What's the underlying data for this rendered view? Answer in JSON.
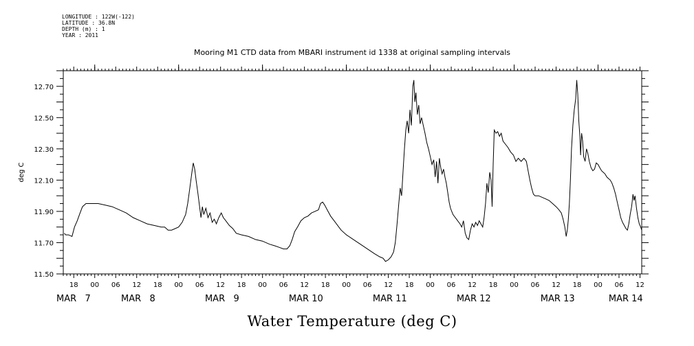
{
  "meta": {
    "longitude": "LONGITUDE : 122W(-122)",
    "latitude": "LATITUDE : 36.8N",
    "depth": "DEPTH (m) : 1",
    "year": "YEAR : 2011"
  },
  "chart_data": {
    "type": "line",
    "title": "Mooring M1 CTD data from MBARI instrument id 1338 at original sampling intervals",
    "xlabel": "Water Temperature (deg C)",
    "ylabel": "deg C",
    "ylim": [
      11.5,
      12.8
    ],
    "yticks": [
      11.5,
      11.7,
      11.9,
      12.1,
      12.3,
      12.5,
      12.7
    ],
    "ytick_labels": [
      "11.50",
      "11.70",
      "11.90",
      "12.10",
      "12.30",
      "12.50",
      "12.70"
    ],
    "xlim_hours": [
      -33,
      132.5
    ],
    "hour_ticks": [
      {
        "h": -30,
        "label": "18"
      },
      {
        "h": -24,
        "label": "00"
      },
      {
        "h": -18,
        "label": "06"
      },
      {
        "h": -12,
        "label": "12"
      },
      {
        "h": -6,
        "label": "18"
      },
      {
        "h": 0,
        "label": "00"
      },
      {
        "h": 6,
        "label": "06"
      },
      {
        "h": 12,
        "label": "12"
      },
      {
        "h": 18,
        "label": "18"
      },
      {
        "h": 24,
        "label": "00"
      },
      {
        "h": 30,
        "label": "06"
      },
      {
        "h": 36,
        "label": "12"
      },
      {
        "h": 42,
        "label": "18"
      },
      {
        "h": 48,
        "label": "00"
      },
      {
        "h": 54,
        "label": "06"
      },
      {
        "h": 60,
        "label": "12"
      },
      {
        "h": 66,
        "label": "18"
      },
      {
        "h": 72,
        "label": "00"
      },
      {
        "h": 78,
        "label": "06"
      },
      {
        "h": 84,
        "label": "12"
      },
      {
        "h": 90,
        "label": "18"
      },
      {
        "h": 96,
        "label": "00"
      },
      {
        "h": 102,
        "label": "06"
      },
      {
        "h": 108,
        "label": "12"
      },
      {
        "h": 114,
        "label": "18"
      },
      {
        "h": 120,
        "label": "00"
      },
      {
        "h": 126,
        "label": "06"
      },
      {
        "h": 132,
        "label": "12"
      }
    ],
    "date_labels": [
      {
        "h": -33,
        "label": "MAR   7"
      },
      {
        "h": -14.5,
        "label": "MAR   8"
      },
      {
        "h": 9.5,
        "label": "MAR   9"
      },
      {
        "h": 33.5,
        "label": "MAR 10"
      },
      {
        "h": 57.5,
        "label": "MAR 11"
      },
      {
        "h": 81.5,
        "label": "MAR 12"
      },
      {
        "h": 105.5,
        "label": "MAR 13"
      },
      {
        "h": 125,
        "label": "MAR 14"
      }
    ],
    "series": [
      {
        "values": [
          [
            -32.7,
            11.76
          ],
          [
            -32.3,
            11.75
          ],
          [
            -31.5,
            11.75
          ],
          [
            -30.5,
            11.74
          ],
          [
            -29.8,
            11.8
          ],
          [
            -29.0,
            11.84
          ],
          [
            -28.2,
            11.89
          ],
          [
            -27.5,
            11.93
          ],
          [
            -26.5,
            11.95
          ],
          [
            -25.0,
            11.95
          ],
          [
            -23.0,
            11.95
          ],
          [
            -21.0,
            11.94
          ],
          [
            -19.0,
            11.93
          ],
          [
            -17.0,
            11.91
          ],
          [
            -15.0,
            11.89
          ],
          [
            -13.0,
            11.86
          ],
          [
            -11.0,
            11.84
          ],
          [
            -9.0,
            11.82
          ],
          [
            -7.0,
            11.81
          ],
          [
            -5.0,
            11.8
          ],
          [
            -4.0,
            11.8
          ],
          [
            -3.0,
            11.78
          ],
          [
            -2.0,
            11.78
          ],
          [
            -1.0,
            11.79
          ],
          [
            0.0,
            11.8
          ],
          [
            1.0,
            11.83
          ],
          [
            2.0,
            11.88
          ],
          [
            2.6,
            11.95
          ],
          [
            3.2,
            12.05
          ],
          [
            3.8,
            12.15
          ],
          [
            4.2,
            12.21
          ],
          [
            4.6,
            12.17
          ],
          [
            5.0,
            12.1
          ],
          [
            5.5,
            12.02
          ],
          [
            6.0,
            11.93
          ],
          [
            6.4,
            11.86
          ],
          [
            6.8,
            11.93
          ],
          [
            7.2,
            11.88
          ],
          [
            7.8,
            11.92
          ],
          [
            8.4,
            11.86
          ],
          [
            9.0,
            11.89
          ],
          [
            9.6,
            11.83
          ],
          [
            10.2,
            11.85
          ],
          [
            10.8,
            11.82
          ],
          [
            11.5,
            11.86
          ],
          [
            12.2,
            11.89
          ],
          [
            12.8,
            11.86
          ],
          [
            13.5,
            11.84
          ],
          [
            14.5,
            11.81
          ],
          [
            15.5,
            11.79
          ],
          [
            16.5,
            11.76
          ],
          [
            18.0,
            11.75
          ],
          [
            20.0,
            11.74
          ],
          [
            22.0,
            11.72
          ],
          [
            24.0,
            11.71
          ],
          [
            26.0,
            11.69
          ],
          [
            27.5,
            11.68
          ],
          [
            28.8,
            11.67
          ],
          [
            30.0,
            11.66
          ],
          [
            31.0,
            11.66
          ],
          [
            31.8,
            11.68
          ],
          [
            32.5,
            11.72
          ],
          [
            33.2,
            11.77
          ],
          [
            34.0,
            11.8
          ],
          [
            35.0,
            11.84
          ],
          [
            36.0,
            11.86
          ],
          [
            37.0,
            11.87
          ],
          [
            38.0,
            11.89
          ],
          [
            39.0,
            11.9
          ],
          [
            40.0,
            11.91
          ],
          [
            40.6,
            11.95
          ],
          [
            41.2,
            11.96
          ],
          [
            41.8,
            11.94
          ],
          [
            42.5,
            11.91
          ],
          [
            43.5,
            11.87
          ],
          [
            44.5,
            11.84
          ],
          [
            45.5,
            11.81
          ],
          [
            46.5,
            11.78
          ],
          [
            48.0,
            11.75
          ],
          [
            50.0,
            11.72
          ],
          [
            52.0,
            11.69
          ],
          [
            54.0,
            11.66
          ],
          [
            56.0,
            11.63
          ],
          [
            57.5,
            11.61
          ],
          [
            58.5,
            11.6
          ],
          [
            59.2,
            11.58
          ],
          [
            60.0,
            11.59
          ],
          [
            60.8,
            11.61
          ],
          [
            61.5,
            11.64
          ],
          [
            62.0,
            11.7
          ],
          [
            62.5,
            11.82
          ],
          [
            63.0,
            11.95
          ],
          [
            63.4,
            12.05
          ],
          [
            63.8,
            12.0
          ],
          [
            64.2,
            12.15
          ],
          [
            64.6,
            12.3
          ],
          [
            65.0,
            12.42
          ],
          [
            65.4,
            12.48
          ],
          [
            65.8,
            12.4
          ],
          [
            66.2,
            12.55
          ],
          [
            66.6,
            12.45
          ],
          [
            67.0,
            12.7
          ],
          [
            67.3,
            12.74
          ],
          [
            67.6,
            12.6
          ],
          [
            67.9,
            12.66
          ],
          [
            68.3,
            12.52
          ],
          [
            68.7,
            12.58
          ],
          [
            69.1,
            12.46
          ],
          [
            69.5,
            12.5
          ],
          [
            70.0,
            12.45
          ],
          [
            70.5,
            12.4
          ],
          [
            71.0,
            12.34
          ],
          [
            71.5,
            12.3
          ],
          [
            72.0,
            12.25
          ],
          [
            72.5,
            12.2
          ],
          [
            73.0,
            12.23
          ],
          [
            73.4,
            12.12
          ],
          [
            73.8,
            12.22
          ],
          [
            74.2,
            12.08
          ],
          [
            74.6,
            12.24
          ],
          [
            75.0,
            12.18
          ],
          [
            75.4,
            12.14
          ],
          [
            75.8,
            12.17
          ],
          [
            76.2,
            12.12
          ],
          [
            76.6,
            12.08
          ],
          [
            77.0,
            12.02
          ],
          [
            77.4,
            11.96
          ],
          [
            77.8,
            11.92
          ],
          [
            78.5,
            11.88
          ],
          [
            79.5,
            11.85
          ],
          [
            80.5,
            11.82
          ],
          [
            81.0,
            11.8
          ],
          [
            81.5,
            11.84
          ],
          [
            82.0,
            11.76
          ],
          [
            82.5,
            11.73
          ],
          [
            83.0,
            11.72
          ],
          [
            83.5,
            11.78
          ],
          [
            84.0,
            11.82
          ],
          [
            84.5,
            11.8
          ],
          [
            85.0,
            11.83
          ],
          [
            85.5,
            11.81
          ],
          [
            86.0,
            11.84
          ],
          [
            86.5,
            11.82
          ],
          [
            87.0,
            11.8
          ],
          [
            87.4,
            11.86
          ],
          [
            87.8,
            11.95
          ],
          [
            88.2,
            12.08
          ],
          [
            88.6,
            12.02
          ],
          [
            89.0,
            12.15
          ],
          [
            89.4,
            12.1
          ],
          [
            89.7,
            11.93
          ],
          [
            90.0,
            12.2
          ],
          [
            90.3,
            12.42
          ],
          [
            90.8,
            12.4
          ],
          [
            91.3,
            12.41
          ],
          [
            91.8,
            12.38
          ],
          [
            92.3,
            12.4
          ],
          [
            92.8,
            12.35
          ],
          [
            93.5,
            12.33
          ],
          [
            94.2,
            12.31
          ],
          [
            95.0,
            12.28
          ],
          [
            95.8,
            12.26
          ],
          [
            96.5,
            12.22
          ],
          [
            97.2,
            12.24
          ],
          [
            98.0,
            12.22
          ],
          [
            98.8,
            12.24
          ],
          [
            99.5,
            12.22
          ],
          [
            100.0,
            12.16
          ],
          [
            100.5,
            12.1
          ],
          [
            101.0,
            12.05
          ],
          [
            101.5,
            12.01
          ],
          [
            102.0,
            12.0
          ],
          [
            103.0,
            12.0
          ],
          [
            104.0,
            11.99
          ],
          [
            105.0,
            11.98
          ],
          [
            106.0,
            11.97
          ],
          [
            107.0,
            11.95
          ],
          [
            108.0,
            11.93
          ],
          [
            108.8,
            11.91
          ],
          [
            109.5,
            11.89
          ],
          [
            110.0,
            11.85
          ],
          [
            110.5,
            11.8
          ],
          [
            110.9,
            11.74
          ],
          [
            111.2,
            11.78
          ],
          [
            111.5,
            11.85
          ],
          [
            111.8,
            11.95
          ],
          [
            112.1,
            12.1
          ],
          [
            112.4,
            12.3
          ],
          [
            112.8,
            12.45
          ],
          [
            113.2,
            12.55
          ],
          [
            113.6,
            12.62
          ],
          [
            113.9,
            12.74
          ],
          [
            114.2,
            12.65
          ],
          [
            114.5,
            12.48
          ],
          [
            114.8,
            12.38
          ],
          [
            115.0,
            12.26
          ],
          [
            115.3,
            12.4
          ],
          [
            115.6,
            12.35
          ],
          [
            115.9,
            12.25
          ],
          [
            116.3,
            12.22
          ],
          [
            116.7,
            12.3
          ],
          [
            117.1,
            12.27
          ],
          [
            117.5,
            12.22
          ],
          [
            118.0,
            12.18
          ],
          [
            118.5,
            12.16
          ],
          [
            119.0,
            12.17
          ],
          [
            119.5,
            12.21
          ],
          [
            120.0,
            12.2
          ],
          [
            120.5,
            12.18
          ],
          [
            121.0,
            12.16
          ],
          [
            121.5,
            12.15
          ],
          [
            122.0,
            12.14
          ],
          [
            122.5,
            12.12
          ],
          [
            123.0,
            12.11
          ],
          [
            123.5,
            12.1
          ],
          [
            124.0,
            12.08
          ],
          [
            124.5,
            12.05
          ],
          [
            125.0,
            12.01
          ],
          [
            125.5,
            11.96
          ],
          [
            126.0,
            11.91
          ],
          [
            126.5,
            11.86
          ],
          [
            127.0,
            11.83
          ],
          [
            127.5,
            11.81
          ],
          [
            128.0,
            11.79
          ],
          [
            128.4,
            11.78
          ],
          [
            128.8,
            11.82
          ],
          [
            129.2,
            11.88
          ],
          [
            129.6,
            11.93
          ],
          [
            130.0,
            12.01
          ],
          [
            130.3,
            11.97
          ],
          [
            130.6,
            12.0
          ],
          [
            131.0,
            11.92
          ],
          [
            131.4,
            11.86
          ],
          [
            131.8,
            11.82
          ],
          [
            132.2,
            11.8
          ],
          [
            132.5,
            11.78
          ]
        ]
      }
    ]
  }
}
